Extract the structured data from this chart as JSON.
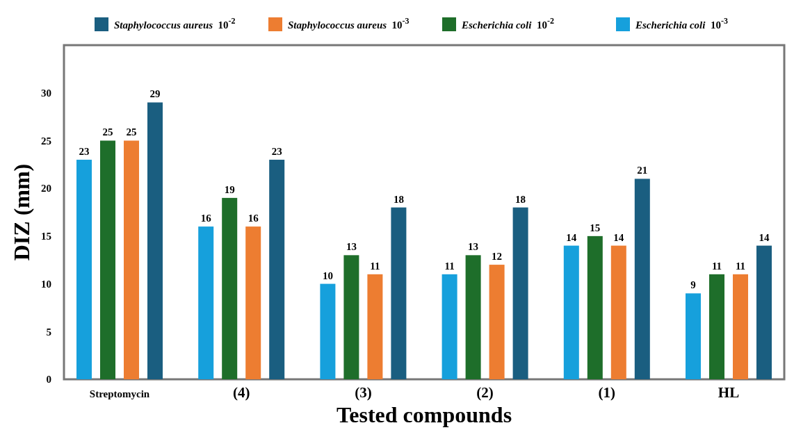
{
  "chart_data": {
    "type": "bar",
    "xlabel": "Tested compounds",
    "ylabel": "DIZ (mm)",
    "categories": [
      "Streptomycin",
      "(4)",
      "(3)",
      "(2)",
      "(1)",
      "HL"
    ],
    "series": [
      {
        "name": "Escherichia coli 10$^{-3}$",
        "color": "#16a0dc",
        "values": [
          23,
          16,
          10,
          11,
          14,
          9
        ]
      },
      {
        "name": "Escherichia coli 10$^{-2}$",
        "color": "#1e6e2a",
        "values": [
          25,
          19,
          13,
          13,
          15,
          11
        ]
      },
      {
        "name": "Staphylococcus aureus 10$^{-3}$",
        "color": "#ed7d31",
        "values": [
          25,
          16,
          11,
          12,
          14,
          11
        ]
      },
      {
        "name": "Staphylococcus aureus 10$^{-2}$",
        "color": "#1a5e80",
        "values": [
          29,
          23,
          18,
          18,
          21,
          14
        ]
      }
    ],
    "ylim": [
      0,
      35
    ],
    "yticks": [
      0,
      5,
      10,
      15,
      20,
      25,
      30
    ],
    "grid": false,
    "legend": "top",
    "data_labels": true
  }
}
